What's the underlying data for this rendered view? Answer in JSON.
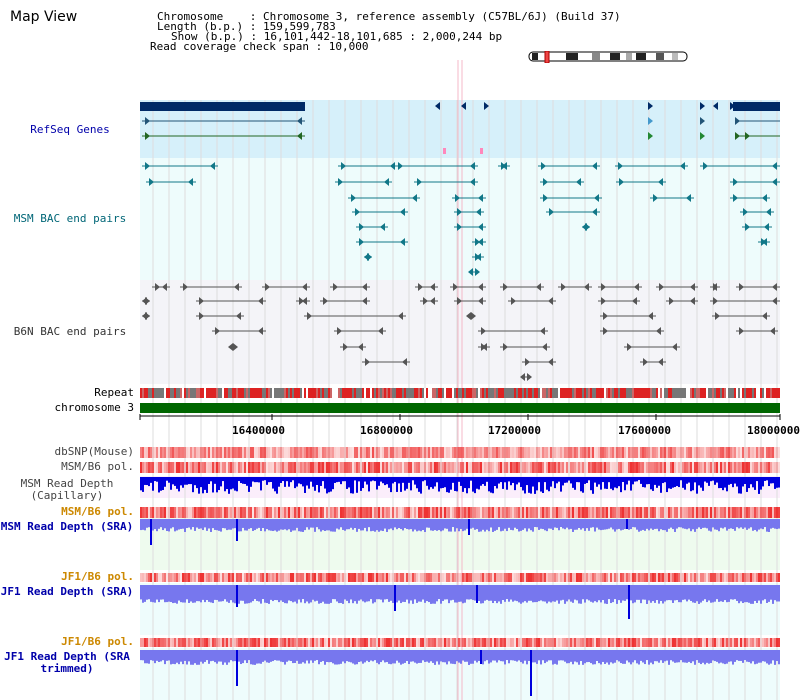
{
  "page_title": "Map View",
  "info": {
    "chromosome_label": "Chromosome    : Chromosome 3, reference assembly (C57BL/6J) (Build 37)",
    "length_label": "Length (b.p.) : 159,599,783",
    "show_label": "Show (b.p.) : 16,101,442-18,101,685 : 2,000,244 bp",
    "read_span_label": "Read coverage check span : 10,000"
  },
  "tracks": {
    "refseq": {
      "label": "RefSeq Genes",
      "color": "#0000aa"
    },
    "msm_bac": {
      "label": "MSM BAC end pairs",
      "color": "#006677"
    },
    "b6n_bac": {
      "label": "B6N BAC end pairs",
      "color": "#333333"
    },
    "repeat": {
      "label": "Repeat"
    },
    "chromosome": {
      "label": "chromosome 3"
    },
    "dbsnp": {
      "label": "dbSNP(Mouse)",
      "color": "#444444"
    },
    "msm_b6_pol_1": {
      "label": "MSM/B6 pol.",
      "color": "#444444"
    },
    "msm_depth_cap": {
      "label": "MSM Read Depth\n(Capillary)",
      "color": "#444444"
    },
    "msm_b6_pol_2": {
      "label": "MSM/B6 pol.",
      "color": "#cc8800"
    },
    "msm_depth_sra": {
      "label": "MSM Read Depth\n(SRA)",
      "color": "#0000aa"
    },
    "jf1_b6_pol_1": {
      "label": "JF1/B6 pol.",
      "color": "#cc8800"
    },
    "jf1_depth_sra": {
      "label": "JF1 Read Depth\n(SRA)",
      "color": "#0000aa"
    },
    "jf1_b6_pol_2": {
      "label": "JF1/B6 pol.",
      "color": "#cc8800"
    },
    "jf1_depth_trim": {
      "label": "JF1 Read Depth\n(SRA trimmed)",
      "color": "#0000aa"
    }
  },
  "axis": {
    "ticks": [
      "16400000",
      "16800000",
      "17200000",
      "17600000",
      "18000000"
    ]
  },
  "colors": {
    "refseq_bg": "#d6f0fa",
    "bac_bg": "#eefcfc",
    "depth_cap_bg": "#fbeefb",
    "depth_sra_bg": "#eefbee",
    "depth_jf1_bg": "#eefcfc",
    "chromosome_bar": "#006600",
    "depth_bar": "#7777ee",
    "depth_bar_dark": "#0000dd",
    "pol_color": "#ee3333",
    "gene_dark": "#002a66"
  }
}
